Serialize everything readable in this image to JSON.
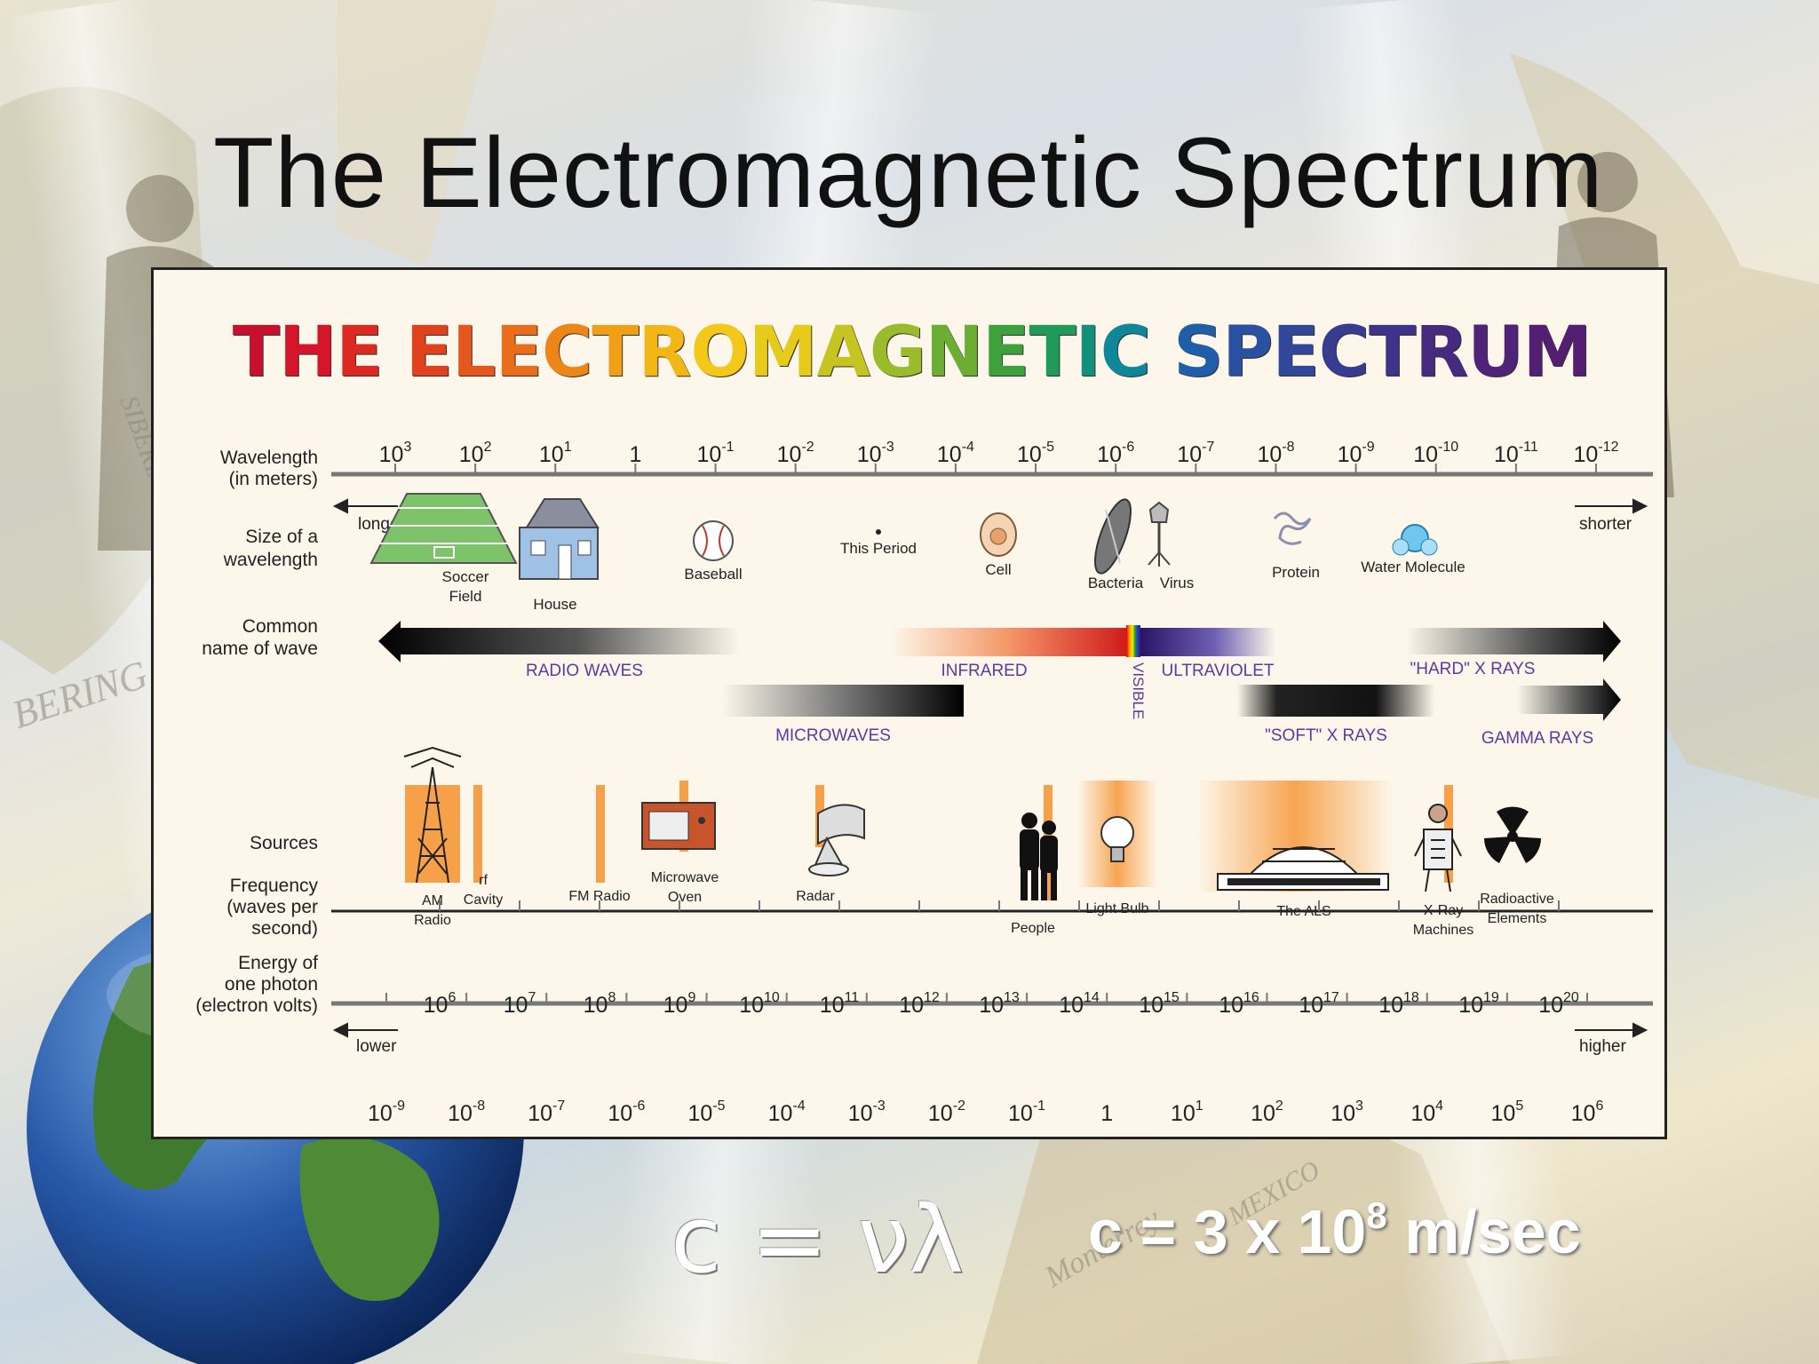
{
  "slide": {
    "title": "The Electromagnetic Spectrum",
    "equation_main": "c = νλ",
    "equation_speed_prefix": "c = 3 x 10",
    "equation_speed_exp": "8",
    "equation_speed_suffix": " m/sec",
    "background_labels": [
      "BERING SEA",
      "SIBERIA",
      "Monterrey",
      "MEXICO"
    ]
  },
  "poster": {
    "title_letters": [
      "T",
      "H",
      "E",
      " ",
      "E",
      "L",
      "E",
      "C",
      "T",
      "R",
      "O",
      "M",
      "A",
      "G",
      "N",
      "E",
      "T",
      "I",
      "C",
      " ",
      "S",
      "P",
      "E",
      "C",
      "T",
      "R",
      "U",
      "M"
    ],
    "title_colors": [
      "#c8102e",
      "#d4152a",
      "#dc2a22",
      "#ffffff",
      "#e0421e",
      "#e5571c",
      "#e96d1a",
      "#ee8617",
      "#f19f16",
      "#f3b715",
      "#f4c818",
      "#e6cb1a",
      "#c5c421",
      "#9abb2a",
      "#6cae33",
      "#3ea23c",
      "#1f9a5b",
      "#12907c",
      "#0f879a",
      "#ffffff",
      "#1f5fa9",
      "#2a51a1",
      "#30479a",
      "#383c91",
      "#3e3388",
      "#462a80",
      "#4e2378",
      "#541e72"
    ],
    "row_labels": {
      "wavelength": [
        "Wavelength",
        "(in meters)"
      ],
      "size": [
        "Size of a",
        "wavelength"
      ],
      "common": [
        "Common",
        "name of wave"
      ],
      "sources": [
        "Sources"
      ],
      "frequency": [
        "Frequency",
        "(waves per",
        "second)"
      ],
      "energy": [
        "Energy of",
        "one photon",
        "(electron volts)"
      ]
    },
    "wavelength_ticks": [
      {
        "b": "10",
        "e": "3"
      },
      {
        "b": "10",
        "e": "2"
      },
      {
        "b": "10",
        "e": "1"
      },
      {
        "b": "1",
        "e": ""
      },
      {
        "b": "10",
        "e": "-1"
      },
      {
        "b": "10",
        "e": "-2"
      },
      {
        "b": "10",
        "e": "-3"
      },
      {
        "b": "10",
        "e": "-4"
      },
      {
        "b": "10",
        "e": "-5"
      },
      {
        "b": "10",
        "e": "-6"
      },
      {
        "b": "10",
        "e": "-7"
      },
      {
        "b": "10",
        "e": "-8"
      },
      {
        "b": "10",
        "e": "-9"
      },
      {
        "b": "10",
        "e": "-10"
      },
      {
        "b": "10",
        "e": "-11"
      },
      {
        "b": "10",
        "e": "-12"
      }
    ],
    "longer": "longer",
    "shorter": "shorter",
    "size_objects": [
      "Soccer",
      "Field",
      "House",
      "Baseball",
      "This Period",
      "Cell",
      "Bacteria",
      "Virus",
      "Protein",
      "Water Molecule"
    ],
    "bands": {
      "radio": "RADIO WAVES",
      "infrared": "INFRARED",
      "visible": "VISIBLE",
      "ultraviolet": "ULTRAVIOLET",
      "hard_xrays": "\"HARD\" X RAYS",
      "microwaves": "MICROWAVES",
      "soft_xrays": "\"SOFT\" X RAYS",
      "gamma": "GAMMA RAYS"
    },
    "sources": [
      "AM",
      "Radio",
      "rf",
      "Cavity",
      "FM Radio",
      "Microwave",
      "Oven",
      "Radar",
      "People",
      "Light Bulb",
      "The ALS",
      "X-Ray",
      "Machines",
      "Radioactive",
      "Elements"
    ],
    "frequency_ticks": [
      {
        "b": "10",
        "e": "6"
      },
      {
        "b": "10",
        "e": "7"
      },
      {
        "b": "10",
        "e": "8"
      },
      {
        "b": "10",
        "e": "9"
      },
      {
        "b": "10",
        "e": "10"
      },
      {
        "b": "10",
        "e": "11"
      },
      {
        "b": "10",
        "e": "12"
      },
      {
        "b": "10",
        "e": "13"
      },
      {
        "b": "10",
        "e": "14"
      },
      {
        "b": "10",
        "e": "15"
      },
      {
        "b": "10",
        "e": "16"
      },
      {
        "b": "10",
        "e": "17"
      },
      {
        "b": "10",
        "e": "18"
      },
      {
        "b": "10",
        "e": "19"
      },
      {
        "b": "10",
        "e": "20"
      }
    ],
    "lower": "lower",
    "higher": "higher",
    "energy_ticks": [
      {
        "b": "10",
        "e": "-9"
      },
      {
        "b": "10",
        "e": "-8"
      },
      {
        "b": "10",
        "e": "-7"
      },
      {
        "b": "10",
        "e": "-6"
      },
      {
        "b": "10",
        "e": "-5"
      },
      {
        "b": "10",
        "e": "-4"
      },
      {
        "b": "10",
        "e": "-3"
      },
      {
        "b": "10",
        "e": "-2"
      },
      {
        "b": "10",
        "e": "-1"
      },
      {
        "b": "1",
        "e": ""
      },
      {
        "b": "10",
        "e": "1"
      },
      {
        "b": "10",
        "e": "2"
      },
      {
        "b": "10",
        "e": "3"
      },
      {
        "b": "10",
        "e": "4"
      },
      {
        "b": "10",
        "e": "5"
      },
      {
        "b": "10",
        "e": "6"
      }
    ],
    "colors": {
      "axis": "#777777",
      "label_text": "#222222",
      "band_text": "#5b3aa0",
      "source_orange": "#f7a04a"
    }
  }
}
